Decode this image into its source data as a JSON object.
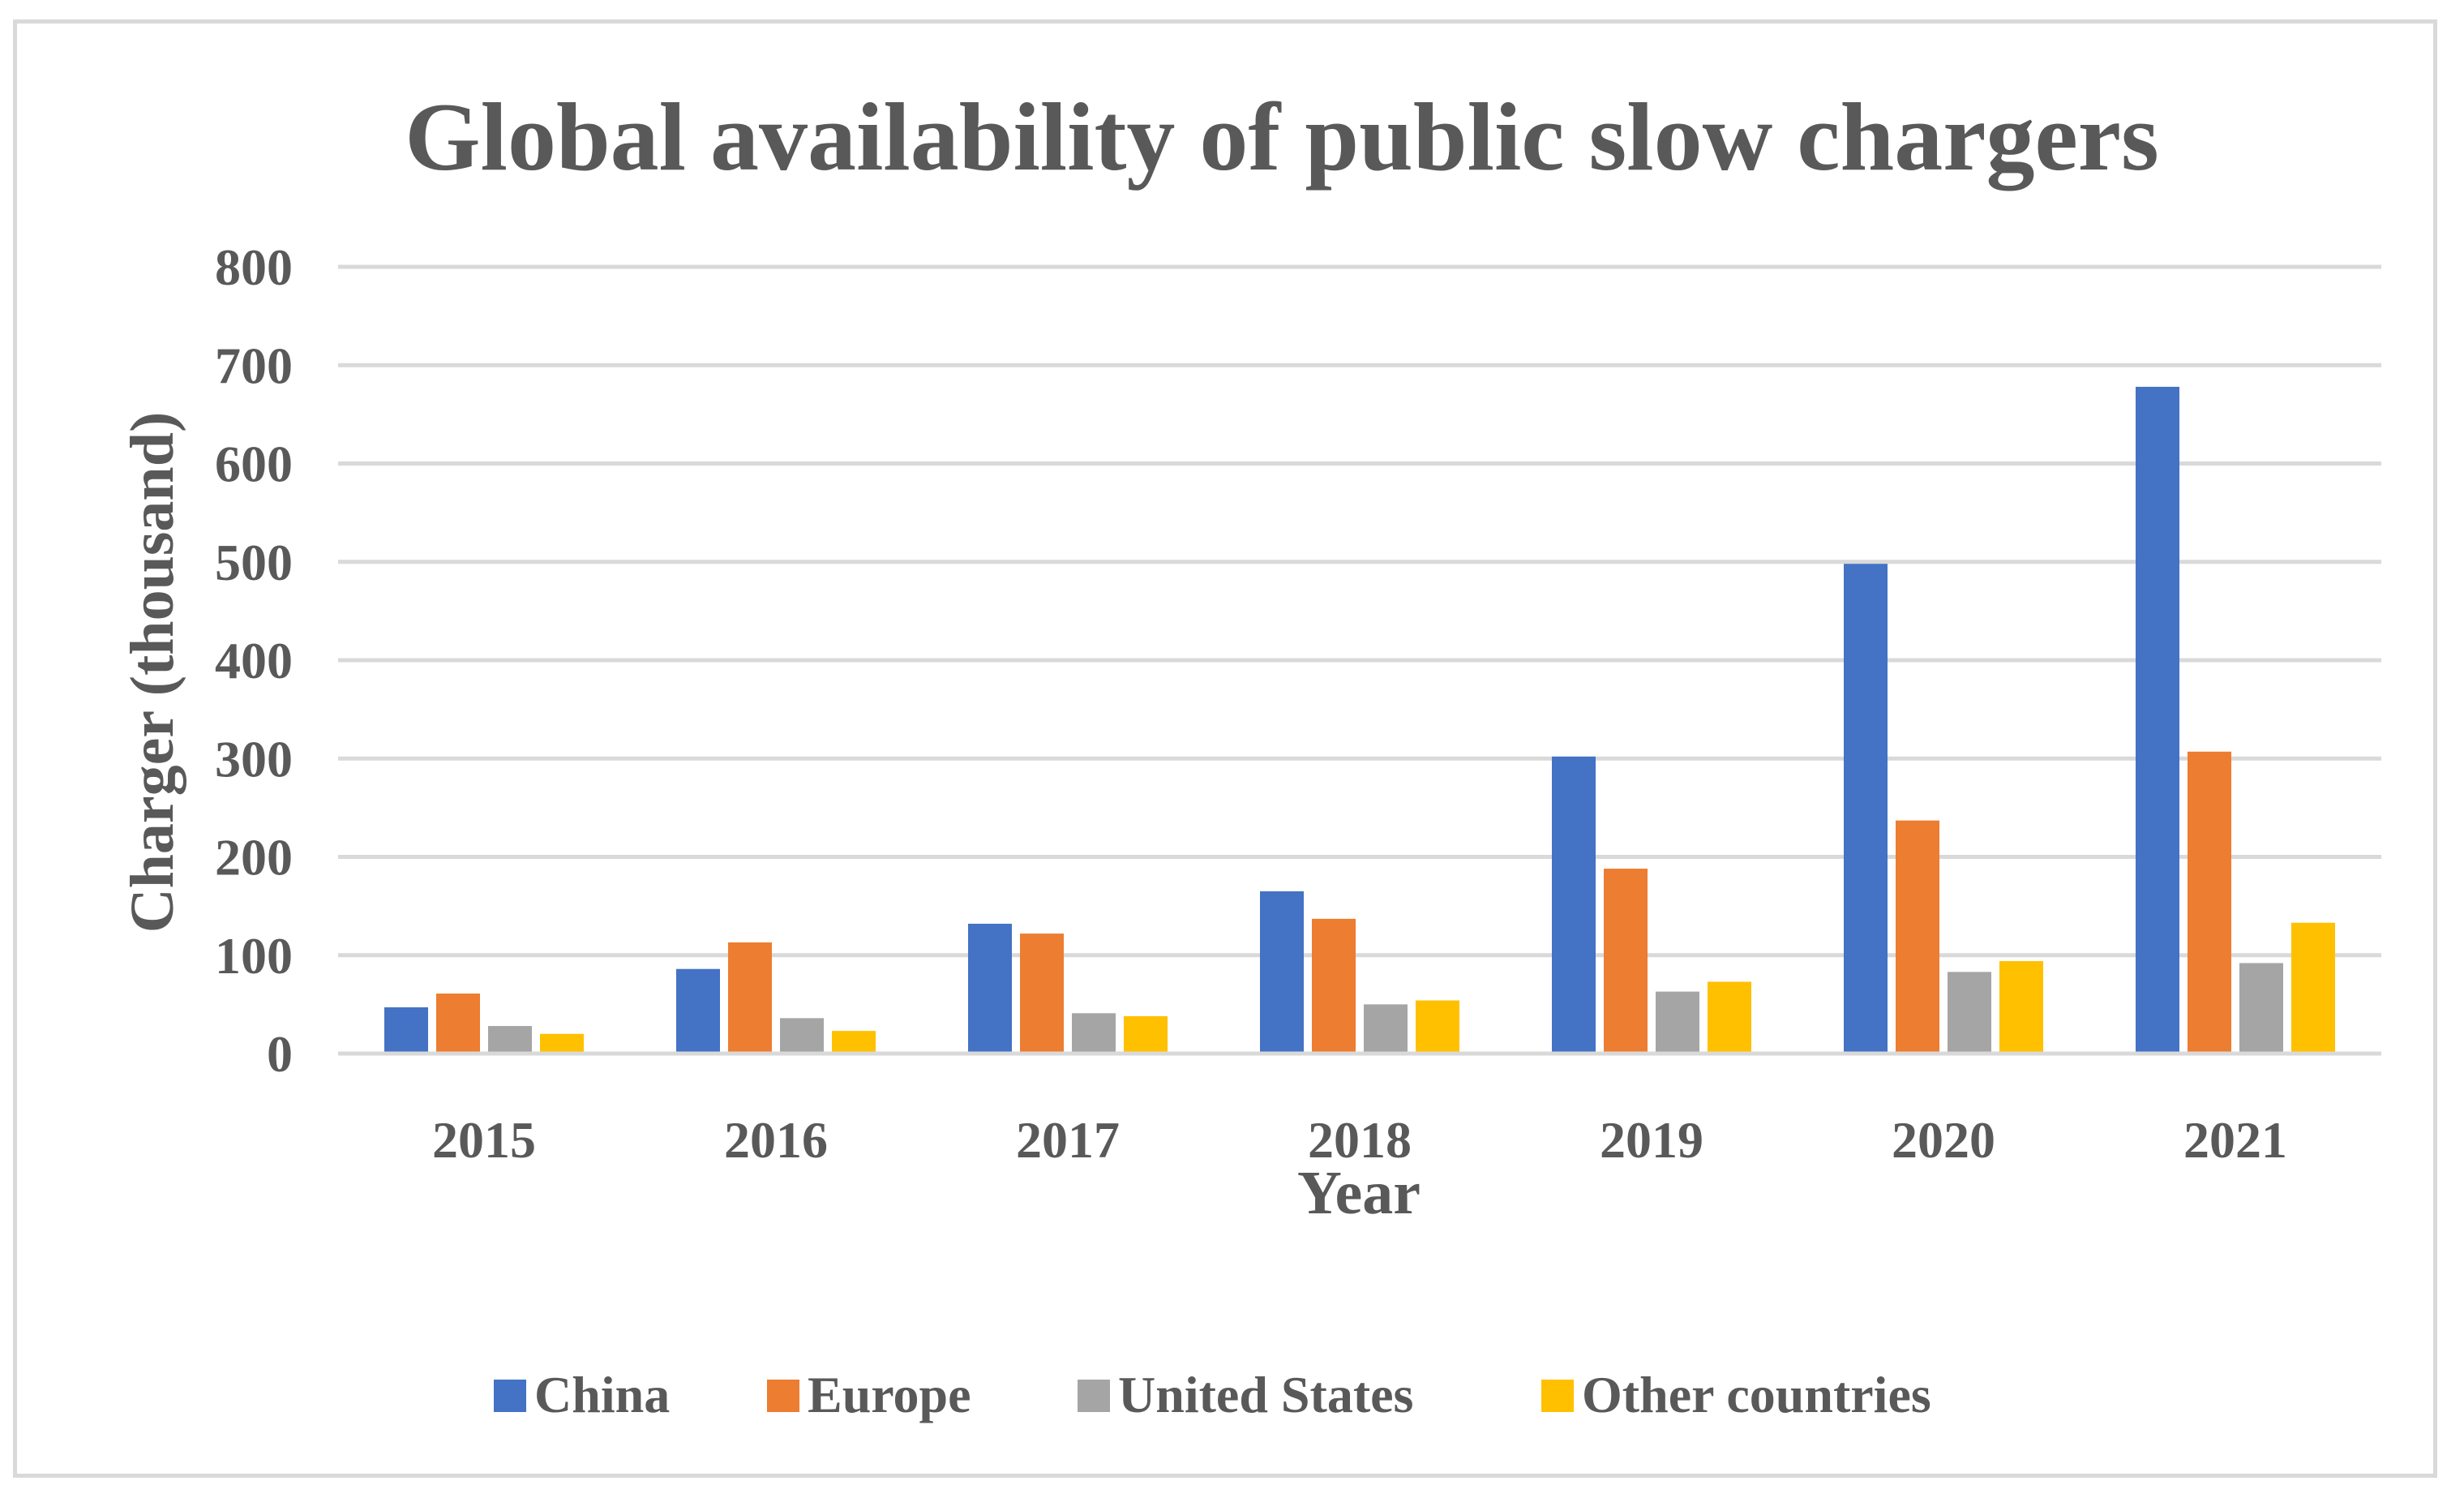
{
  "chart_data": {
    "type": "bar",
    "title": "Global availability of public slow chargers",
    "xlabel": "Year",
    "ylabel": "Charger (thousand)",
    "ylim": [
      0,
      800
    ],
    "yticks": [
      0,
      100,
      200,
      300,
      400,
      500,
      600,
      700,
      800
    ],
    "grid": true,
    "legend_position": "bottom",
    "categories": [
      "2015",
      "2016",
      "2017",
      "2018",
      "2019",
      "2020",
      "2021"
    ],
    "series": [
      {
        "name": "China",
        "color": "#4472C4",
        "values": [
          47,
          86,
          132,
          165,
          302,
          498,
          678
        ]
      },
      {
        "name": "Europe",
        "color": "#ED7D31",
        "values": [
          61,
          113,
          122,
          137,
          188,
          237,
          307
        ]
      },
      {
        "name": "United States",
        "color": "#A5A5A5",
        "values": [
          28,
          36,
          41,
          50,
          63,
          83,
          92
        ]
      },
      {
        "name": "Other countries",
        "color": "#FFC000",
        "values": [
          20,
          23,
          38,
          54,
          73,
          94,
          133
        ]
      }
    ]
  }
}
